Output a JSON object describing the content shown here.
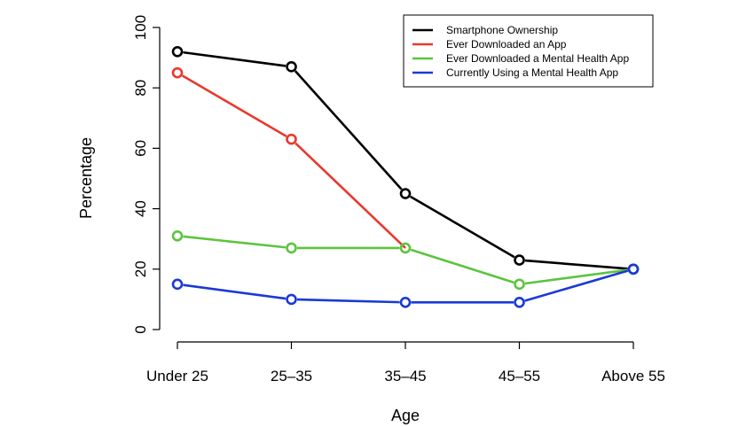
{
  "chart_data": {
    "type": "line",
    "title": "",
    "xlabel": "Age",
    "ylabel": "Percentage",
    "categories": [
      "Under 25",
      "25–35",
      "35–45",
      "45–55",
      "Above 55"
    ],
    "ylim": [
      0,
      100
    ],
    "yticks": [
      0,
      20,
      40,
      60,
      80,
      100
    ],
    "grid": false,
    "legend_position": "top-right",
    "series": [
      {
        "name": "Smartphone Ownership",
        "color": "#000000",
        "values": [
          92,
          87,
          45,
          23,
          20
        ]
      },
      {
        "name": "Ever Downloaded an App",
        "color": "#e8392d",
        "values": [
          85,
          63,
          null,
          null,
          null
        ]
      },
      {
        "name": "Ever Downloaded a Mental Health App",
        "color": "#5cc43f",
        "values": [
          31,
          27,
          27,
          15,
          20
        ]
      },
      {
        "name": "Currently Using a Mental Health App",
        "color": "#1a39d6",
        "values": [
          15,
          10,
          9,
          9,
          20
        ]
      }
    ]
  }
}
